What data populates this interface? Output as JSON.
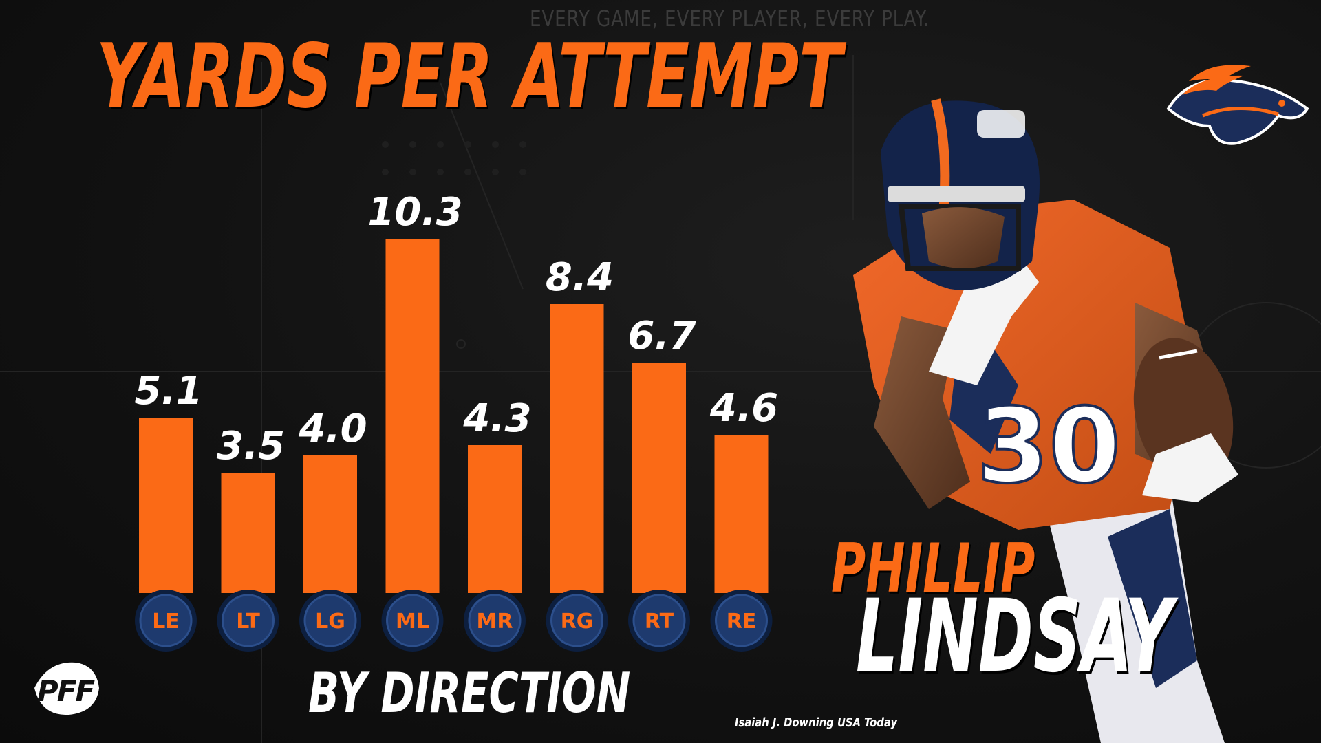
{
  "tagline": "EVERY GAME, EVERY PLAYER, EVERY PLAY.",
  "brand": "PFF",
  "colors": {
    "accent": "#fb6a16",
    "bar": "#fb6a16",
    "circle_fill": "#1e3a6e",
    "circle_ring": "#0d1f3f",
    "background": "#111111",
    "text": "#ffffff"
  },
  "player": {
    "first_name": "PHILLIP",
    "last_name": "LINDSAY"
  },
  "photo_credit": "Isaiah J. Downing USA Today",
  "chart_data": {
    "type": "bar",
    "title": "YARDS PER ATTEMPT",
    "subtitle": "BY DIRECTION",
    "categories": [
      "LE",
      "LT",
      "LG",
      "ML",
      "MR",
      "RG",
      "RT",
      "RE"
    ],
    "values": [
      5.1,
      3.5,
      4.0,
      10.3,
      4.3,
      8.4,
      6.7,
      4.6
    ],
    "value_labels": [
      "5.1",
      "3.5",
      "4.0",
      "10.3",
      "4.3",
      "8.4",
      "6.7",
      "4.6"
    ],
    "ylim": [
      0,
      10.3
    ],
    "grid": false,
    "legend": "none"
  }
}
